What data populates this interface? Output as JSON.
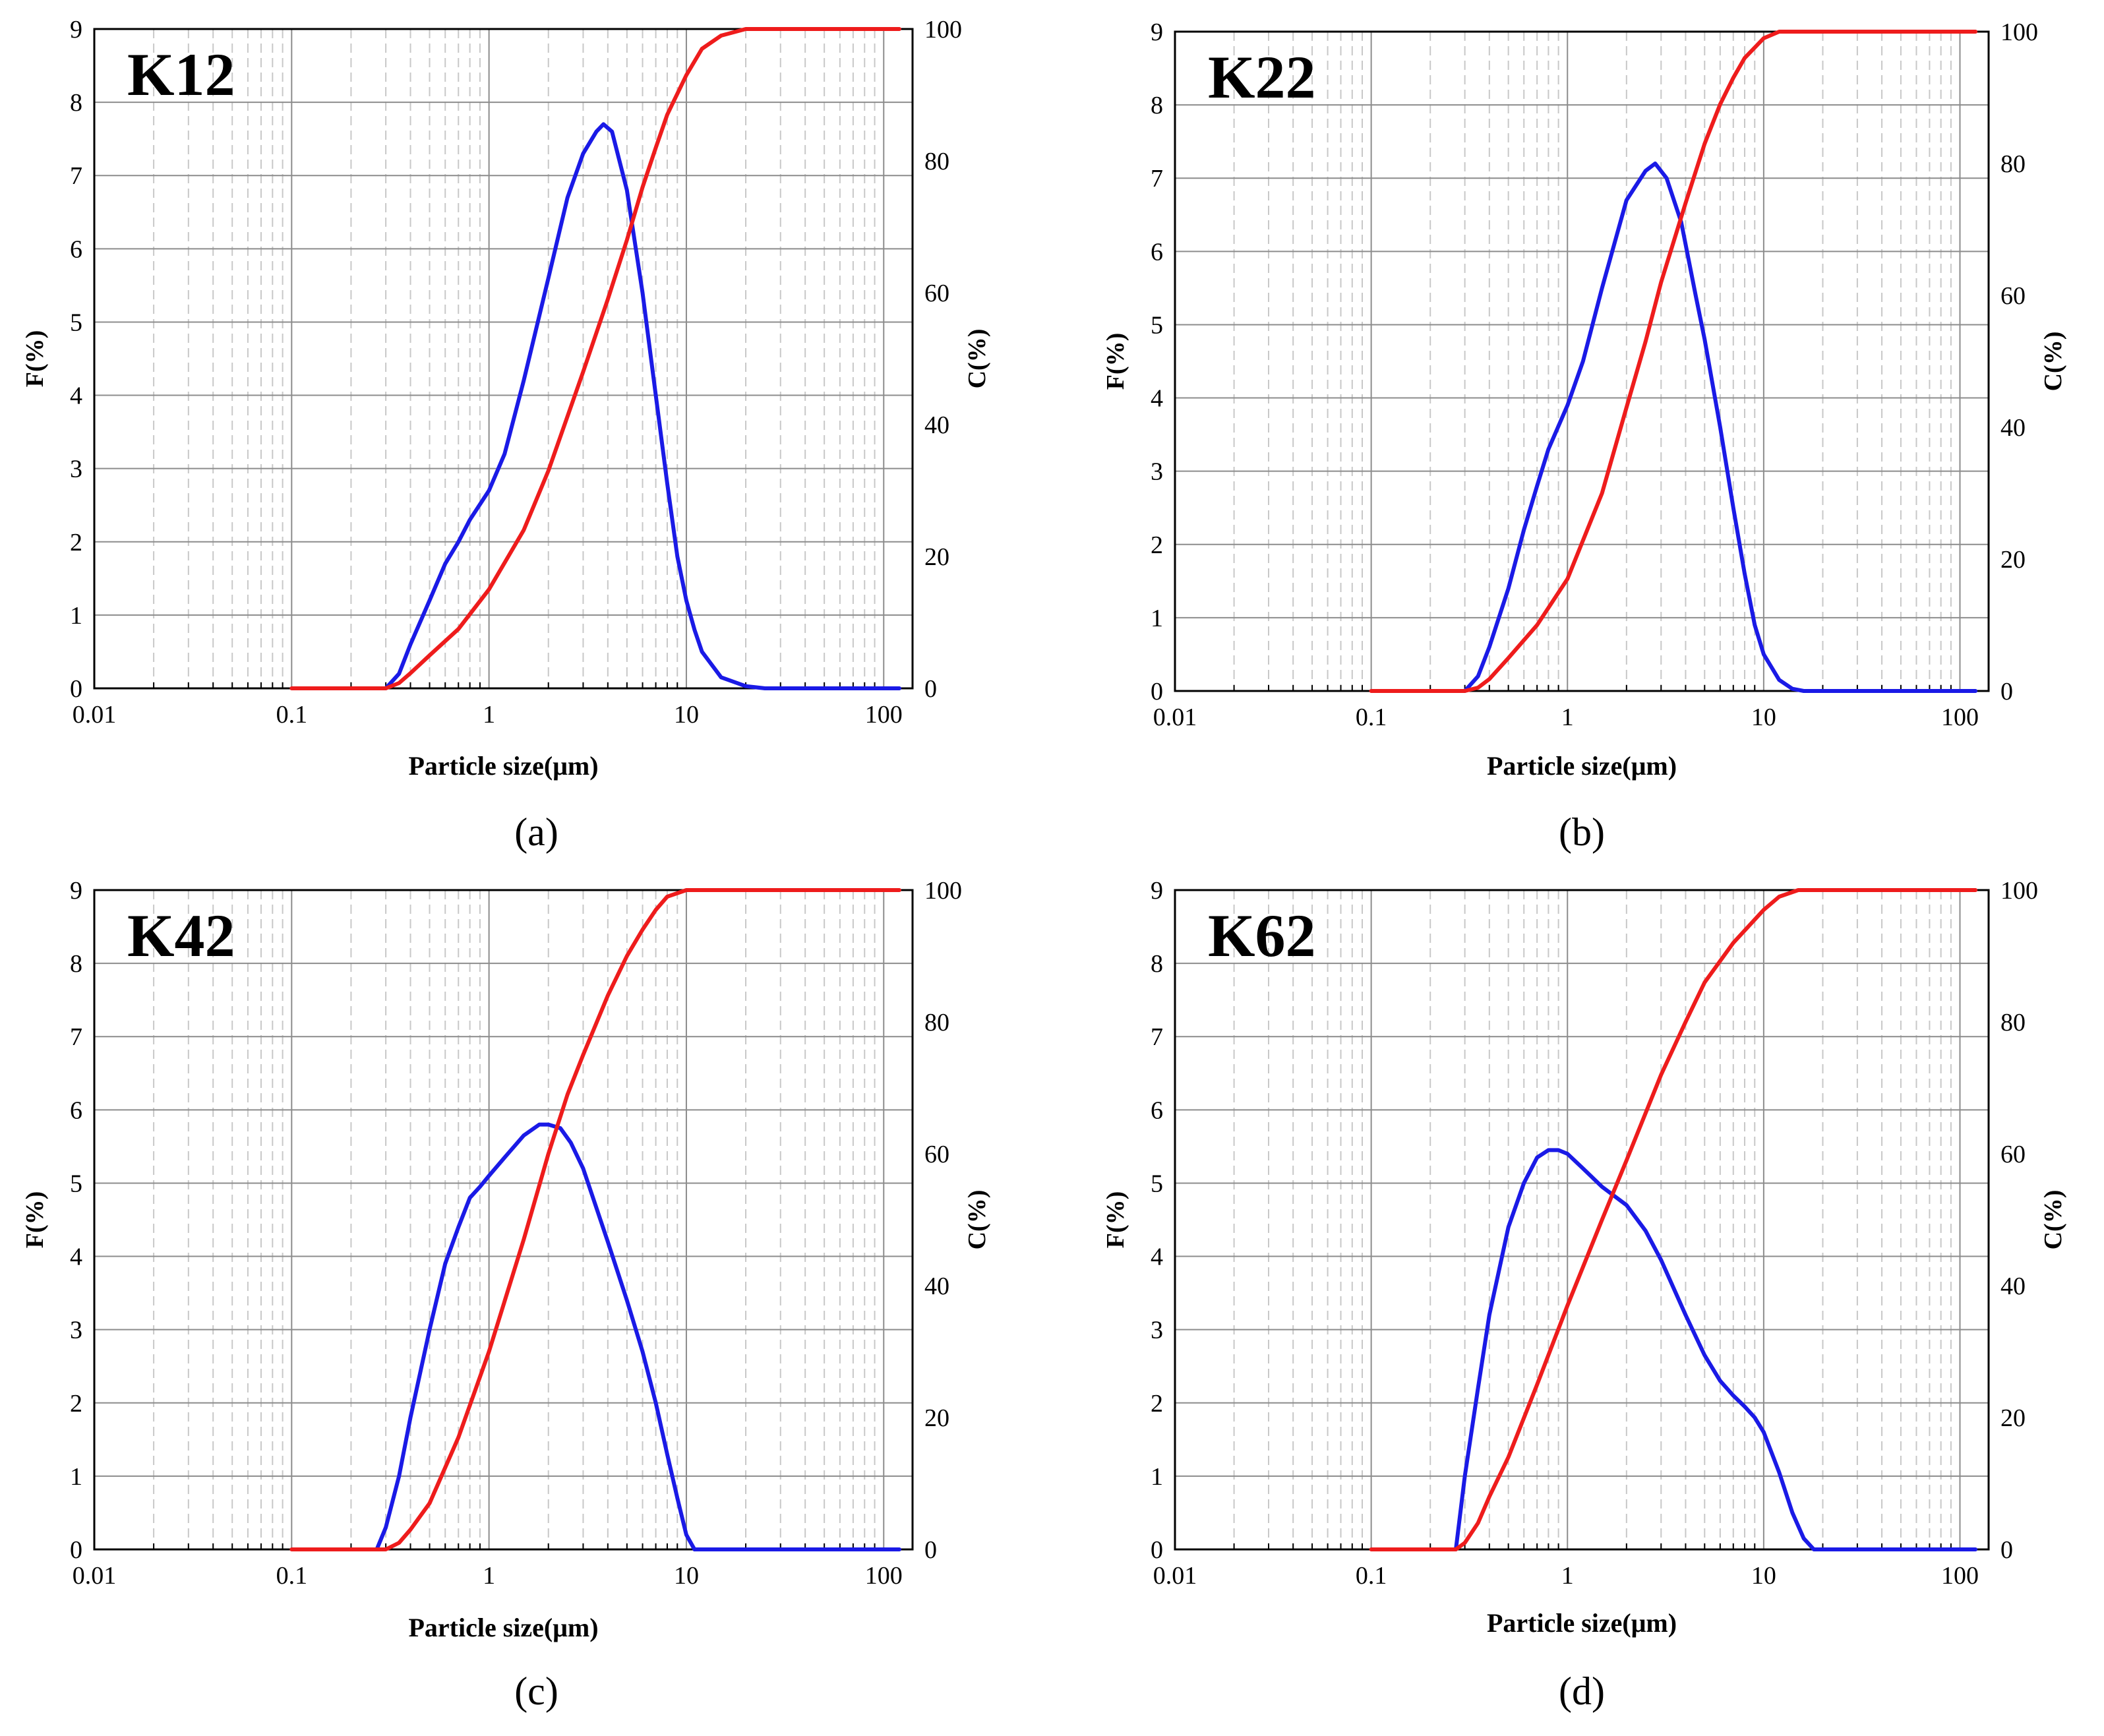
{
  "figure": {
    "colors": {
      "F": "#1a1ae6",
      "C": "#ee1c1c",
      "grid_major": "#8c8c8c",
      "grid_minor": "#c8c8c8"
    }
  },
  "chart_data": [
    {
      "type": "line",
      "label": "K12",
      "caption": "(a)",
      "xlabel": "Particle size(μm)",
      "ylabel_left": "F(%)",
      "ylabel_right": "C(%)",
      "xscale": "log",
      "xlim": [
        0.01,
        140
      ],
      "xticks": [
        "0.01",
        "0.1",
        "1",
        "10",
        "100"
      ],
      "ylim_left": [
        0,
        9
      ],
      "yticks_left": [
        "0",
        "1",
        "2",
        "3",
        "4",
        "5",
        "6",
        "7",
        "8",
        "9"
      ],
      "ylim_right": [
        0,
        100
      ],
      "yticks_right": [
        "0",
        "20",
        "40",
        "60",
        "80",
        "100"
      ],
      "series": [
        {
          "name": "F(%)",
          "axis": "left",
          "color": "#1a1ae6",
          "x": [
            0.3,
            0.35,
            0.4,
            0.5,
            0.6,
            0.7,
            0.8,
            1.0,
            1.2,
            1.5,
            2.0,
            2.5,
            3.0,
            3.5,
            3.8,
            4.2,
            5.0,
            6.0,
            7.0,
            8.0,
            9.0,
            10,
            11,
            12,
            15,
            20,
            25,
            30,
            120
          ],
          "y": [
            0,
            0.2,
            0.6,
            1.2,
            1.7,
            2.0,
            2.3,
            2.7,
            3.2,
            4.2,
            5.6,
            6.7,
            7.3,
            7.6,
            7.7,
            7.6,
            6.8,
            5.4,
            4.0,
            2.8,
            1.8,
            1.2,
            0.8,
            0.5,
            0.15,
            0.03,
            0,
            0,
            0
          ]
        },
        {
          "name": "C(%)",
          "axis": "right",
          "color": "#ee1c1c",
          "x": [
            0.1,
            0.2,
            0.3,
            0.35,
            0.4,
            0.5,
            0.7,
            1.0,
            1.5,
            2.0,
            3.0,
            4.0,
            5.0,
            6.0,
            7.0,
            8.0,
            10,
            12,
            15,
            20,
            100,
            120
          ],
          "y": [
            0,
            0,
            0,
            0.8,
            2.3,
            5,
            9,
            15,
            24,
            33,
            48,
            59,
            68,
            76,
            82,
            87,
            93,
            97,
            99,
            100,
            100,
            100
          ]
        }
      ]
    },
    {
      "type": "line",
      "label": "K22",
      "caption": "(b)",
      "xlabel": "Particle size(μm)",
      "ylabel_left": "F(%)",
      "ylabel_right": "C(%)",
      "xscale": "log",
      "xlim": [
        0.01,
        140
      ],
      "xticks": [
        "0.01",
        "0.1",
        "1",
        "10",
        "100"
      ],
      "ylim_left": [
        0,
        9
      ],
      "yticks_left": [
        "0",
        "1",
        "2",
        "3",
        "4",
        "5",
        "6",
        "7",
        "8",
        "9"
      ],
      "ylim_right": [
        0,
        100
      ],
      "yticks_right": [
        "0",
        "20",
        "40",
        "60",
        "80",
        "100"
      ],
      "series": [
        {
          "name": "F(%)",
          "axis": "left",
          "color": "#1a1ae6",
          "x": [
            0.3,
            0.35,
            0.4,
            0.5,
            0.6,
            0.7,
            0.8,
            1.0,
            1.2,
            1.5,
            2.0,
            2.5,
            2.8,
            3.2,
            3.8,
            4.5,
            5.0,
            6.0,
            7.0,
            8.0,
            9.0,
            10,
            12,
            14,
            16,
            20,
            120
          ],
          "y": [
            0,
            0.2,
            0.6,
            1.4,
            2.2,
            2.8,
            3.3,
            3.9,
            4.5,
            5.5,
            6.7,
            7.1,
            7.2,
            7.0,
            6.4,
            5.4,
            4.8,
            3.6,
            2.5,
            1.6,
            0.9,
            0.5,
            0.15,
            0.03,
            0,
            0,
            0
          ]
        },
        {
          "name": "C(%)",
          "axis": "right",
          "color": "#ee1c1c",
          "x": [
            0.1,
            0.3,
            0.35,
            0.4,
            0.5,
            0.7,
            1.0,
            1.5,
            2.0,
            2.5,
            3.0,
            4.0,
            5.0,
            6.0,
            7.0,
            8.0,
            10,
            12,
            15,
            100,
            120
          ],
          "y": [
            0,
            0,
            0.5,
            1.8,
            5,
            10,
            17,
            30,
            43,
            53,
            62,
            74,
            83,
            89,
            93,
            96,
            99,
            100,
            100,
            100,
            100
          ]
        }
      ]
    },
    {
      "type": "line",
      "label": "K42",
      "caption": "(c)",
      "xlabel": "Particle size(μm)",
      "ylabel_left": "F(%)",
      "ylabel_right": "C(%)",
      "xscale": "log",
      "xlim": [
        0.01,
        140
      ],
      "xticks": [
        "0.01",
        "0.1",
        "1",
        "10",
        "100"
      ],
      "ylim_left": [
        0,
        9
      ],
      "yticks_left": [
        "0",
        "1",
        "2",
        "3",
        "4",
        "5",
        "6",
        "7",
        "8",
        "9"
      ],
      "ylim_right": [
        0,
        100
      ],
      "yticks_right": [
        "0",
        "20",
        "40",
        "60",
        "80",
        "100"
      ],
      "series": [
        {
          "name": "F(%)",
          "axis": "left",
          "color": "#1a1ae6",
          "x": [
            0.27,
            0.3,
            0.35,
            0.4,
            0.5,
            0.6,
            0.7,
            0.8,
            0.9,
            1.0,
            1.2,
            1.5,
            1.8,
            2.0,
            2.3,
            2.6,
            3.0,
            4.0,
            5.0,
            6.0,
            7.0,
            8.0,
            9.0,
            10,
            11,
            12,
            120
          ],
          "y": [
            0,
            0.3,
            1.0,
            1.8,
            3.0,
            3.9,
            4.4,
            4.8,
            4.95,
            5.1,
            5.35,
            5.65,
            5.8,
            5.8,
            5.75,
            5.55,
            5.2,
            4.2,
            3.4,
            2.7,
            2.0,
            1.3,
            0.7,
            0.2,
            0,
            0,
            0
          ]
        },
        {
          "name": "C(%)",
          "axis": "right",
          "color": "#ee1c1c",
          "x": [
            0.1,
            0.3,
            0.35,
            0.4,
            0.5,
            0.7,
            1.0,
            1.5,
            2.0,
            2.5,
            3.0,
            4.0,
            5.0,
            6.0,
            7.0,
            8.0,
            10,
            12,
            100,
            120
          ],
          "y": [
            0,
            0,
            1,
            3,
            7,
            17,
            30,
            47,
            60,
            69,
            75,
            84,
            90,
            94,
            97,
            99,
            100,
            100,
            100,
            100
          ]
        }
      ]
    },
    {
      "type": "line",
      "label": "K62",
      "caption": "(d)",
      "xlabel": "Particle size(μm)",
      "ylabel_left": "F(%)",
      "ylabel_right": "C(%)",
      "xscale": "log",
      "xlim": [
        0.01,
        140
      ],
      "xticks": [
        "0.01",
        "0.1",
        "1",
        "10",
        "100"
      ],
      "ylim_left": [
        0,
        9
      ],
      "yticks_left": [
        "0",
        "1",
        "2",
        "3",
        "4",
        "5",
        "6",
        "7",
        "8",
        "9"
      ],
      "ylim_right": [
        0,
        100
      ],
      "yticks_right": [
        "0",
        "20",
        "40",
        "60",
        "80",
        "100"
      ],
      "series": [
        {
          "name": "F(%)",
          "axis": "left",
          "color": "#1a1ae6",
          "x": [
            0.27,
            0.3,
            0.35,
            0.4,
            0.5,
            0.6,
            0.7,
            0.8,
            0.9,
            1.0,
            1.2,
            1.5,
            2.0,
            2.5,
            3.0,
            4.0,
            5.0,
            6.0,
            7.0,
            8.0,
            9.0,
            10,
            12,
            14,
            16,
            18,
            20,
            120
          ],
          "y": [
            0,
            1.0,
            2.2,
            3.2,
            4.4,
            5.0,
            5.35,
            5.45,
            5.45,
            5.4,
            5.2,
            4.95,
            4.7,
            4.35,
            3.95,
            3.2,
            2.65,
            2.3,
            2.1,
            1.95,
            1.8,
            1.6,
            1.05,
            0.5,
            0.15,
            0,
            0,
            0
          ]
        },
        {
          "name": "C(%)",
          "axis": "right",
          "color": "#ee1c1c",
          "x": [
            0.1,
            0.27,
            0.3,
            0.35,
            0.4,
            0.5,
            0.7,
            1.0,
            1.5,
            2.0,
            3.0,
            4.0,
            5.0,
            7.0,
            10,
            12,
            15,
            100,
            120
          ],
          "y": [
            0,
            0,
            1,
            4,
            8,
            14,
            25,
            37,
            50,
            59,
            72,
            80,
            86,
            92,
            97,
            99,
            100,
            100,
            100
          ]
        }
      ]
    }
  ]
}
